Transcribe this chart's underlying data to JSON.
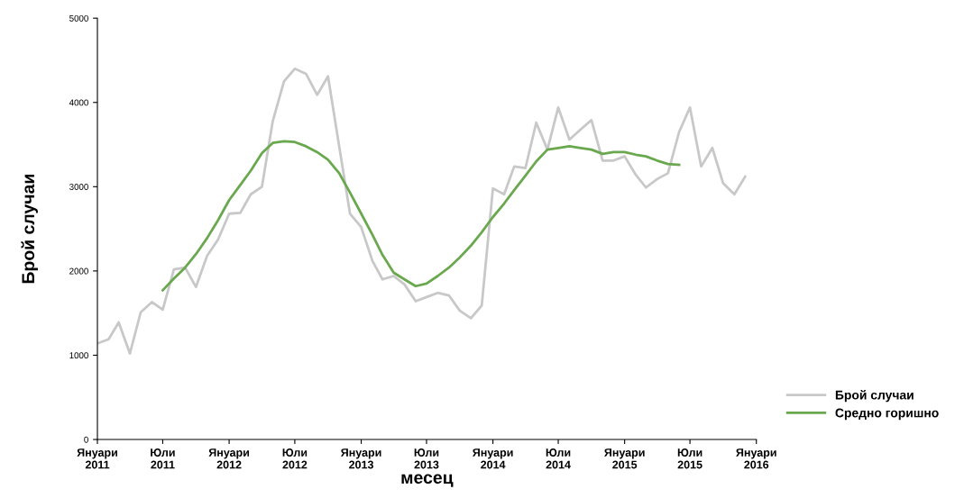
{
  "chart_data": {
    "type": "line",
    "xlabel": "месец",
    "ylabel": "Брой случаи",
    "x": [
      "2011-01",
      "2011-02",
      "2011-03",
      "2011-04",
      "2011-05",
      "2011-06",
      "2011-07",
      "2011-08",
      "2011-09",
      "2011-10",
      "2011-11",
      "2011-12",
      "2012-01",
      "2012-02",
      "2012-03",
      "2012-04",
      "2012-05",
      "2012-06",
      "2012-07",
      "2012-08",
      "2012-09",
      "2012-10",
      "2012-11",
      "2012-12",
      "2013-01",
      "2013-02",
      "2013-03",
      "2013-04",
      "2013-05",
      "2013-06",
      "2013-07",
      "2013-08",
      "2013-09",
      "2013-10",
      "2013-11",
      "2013-12",
      "2014-01",
      "2014-02",
      "2014-03",
      "2014-04",
      "2014-05",
      "2014-06",
      "2014-07",
      "2014-08",
      "2014-09",
      "2014-10",
      "2014-11",
      "2014-12",
      "2015-01",
      "2015-02",
      "2015-03",
      "2015-04",
      "2015-05",
      "2015-06",
      "2015-07",
      "2015-08",
      "2015-09",
      "2015-10",
      "2015-11",
      "2015-12"
    ],
    "series": [
      {
        "name": "Брой случаи",
        "color": "#c8c8c8",
        "values": [
          1140,
          1190,
          1390,
          1020,
          1510,
          1630,
          1540,
          2020,
          2040,
          1810,
          2180,
          2370,
          2680,
          2690,
          2910,
          3000,
          3780,
          4250,
          4400,
          4340,
          4090,
          4310,
          3480,
          2680,
          2520,
          2120,
          1900,
          1940,
          1840,
          1640,
          1690,
          1740,
          1710,
          1530,
          1440,
          1590,
          2980,
          2910,
          3240,
          3220,
          3760,
          3440,
          3940,
          3560,
          3680,
          3790,
          3310,
          3310,
          3360,
          3140,
          2990,
          3090,
          3160,
          3650,
          3940,
          3240,
          3460,
          3040,
          2910,
          3120
        ]
      },
      {
        "name": "Средно горишно",
        "color": "#6aa84f",
        "values": [
          null,
          null,
          null,
          null,
          null,
          null,
          1770,
          1910,
          2040,
          2200,
          2390,
          2600,
          2840,
          3020,
          3190,
          3400,
          3520,
          3540,
          3530,
          3480,
          3410,
          3320,
          3160,
          2930,
          2680,
          2430,
          2190,
          1980,
          1900,
          1820,
          1850,
          1940,
          2040,
          2160,
          2300,
          2460,
          2640,
          2800,
          2960,
          3130,
          3300,
          3440,
          3460,
          3480,
          3460,
          3440,
          3390,
          3410,
          3410,
          3380,
          3360,
          3310,
          3270,
          3260,
          null,
          null,
          null,
          null,
          null,
          null
        ]
      }
    ],
    "xlim": [
      "2011-01",
      "2016-01"
    ],
    "xticks": [
      {
        "value": "2011-01",
        "label": "Януари\n2011"
      },
      {
        "value": "2011-07",
        "label": "Юли\n2011"
      },
      {
        "value": "2012-01",
        "label": "Януари\n2012"
      },
      {
        "value": "2012-07",
        "label": "Юли\n2012"
      },
      {
        "value": "2013-01",
        "label": "Януари\n2013"
      },
      {
        "value": "2013-07",
        "label": "Юли\n2013"
      },
      {
        "value": "2014-01",
        "label": "Януари\n2014"
      },
      {
        "value": "2014-07",
        "label": "Юли\n2014"
      },
      {
        "value": "2015-01",
        "label": "Януари\n2015"
      },
      {
        "value": "2015-07",
        "label": "Юли\n2015"
      },
      {
        "value": "2016-01",
        "label": "Януари\n2016"
      }
    ],
    "ylim": [
      0,
      5000
    ],
    "yticks": [
      0,
      1000,
      2000,
      3000,
      4000,
      5000
    ],
    "grid": false,
    "legend": "bottom right",
    "marker": "none",
    "line_style": "solid"
  }
}
